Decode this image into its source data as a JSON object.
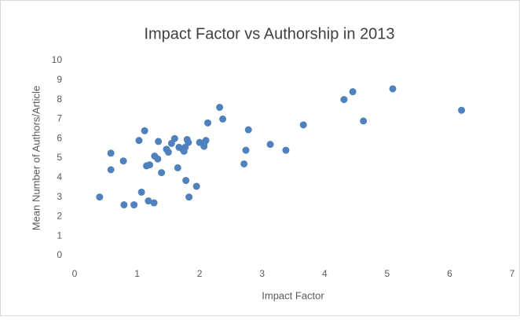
{
  "chart_data": {
    "type": "scatter",
    "title": "Impact Factor vs Authorship in 2013",
    "x_label": "Impact Factor",
    "y_label": "Mean Number  of Authors/Article",
    "color": "#4f81bd",
    "xlim": [
      0,
      7
    ],
    "ylim": [
      0,
      10
    ],
    "xticks": [
      0,
      1,
      2,
      3,
      4,
      5,
      6,
      7
    ],
    "yticks": [
      0,
      1,
      2,
      3,
      4,
      5,
      6,
      7,
      8,
      9,
      10
    ],
    "grid": false,
    "x": [
      0.4,
      0.58,
      0.58,
      0.78,
      0.79,
      0.95,
      1.03,
      1.07,
      1.12,
      1.15,
      1.2,
      1.18,
      1.27,
      1.28,
      1.33,
      1.34,
      1.39,
      1.47,
      1.5,
      1.55,
      1.6,
      1.65,
      1.67,
      1.73,
      1.75,
      1.77,
      1.8,
      1.82,
      1.78,
      1.83,
      1.95,
      2.0,
      2.07,
      2.1,
      2.07,
      2.13,
      2.32,
      2.37,
      2.71,
      2.74,
      2.78,
      3.13,
      3.38,
      3.66,
      4.31,
      4.45,
      4.62,
      5.09,
      6.19
    ],
    "values": [
      3.0,
      5.25,
      4.4,
      4.85,
      2.6,
      2.6,
      5.9,
      3.25,
      6.4,
      4.6,
      4.65,
      2.8,
      2.7,
      5.1,
      4.95,
      5.85,
      4.25,
      5.45,
      5.3,
      5.75,
      6.0,
      4.5,
      5.55,
      5.45,
      5.35,
      5.55,
      5.95,
      5.8,
      3.85,
      3.0,
      3.55,
      5.8,
      5.75,
      5.9,
      5.6,
      6.8,
      7.6,
      7.0,
      4.7,
      5.4,
      6.45,
      5.7,
      5.4,
      6.7,
      8.0,
      8.4,
      6.9,
      8.55,
      7.45
    ]
  }
}
